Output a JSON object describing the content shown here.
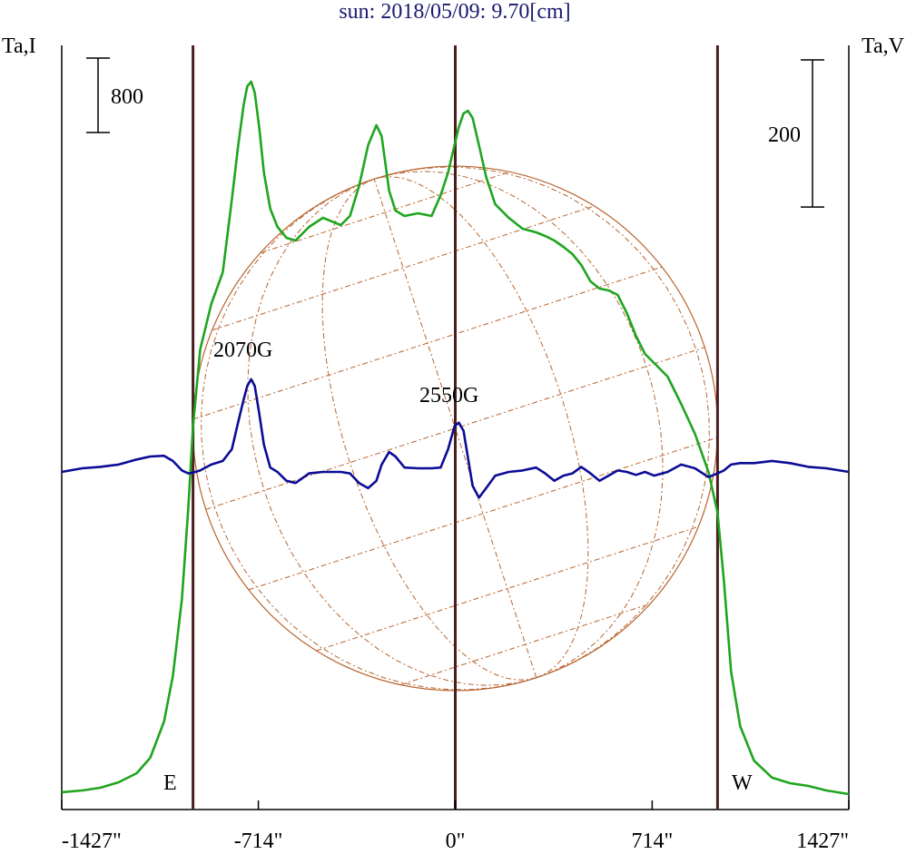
{
  "chart_data": {
    "type": "line",
    "title": "sun: 2018/05/09: 9.70[cm]",
    "y_label": "Ta,I",
    "y2_label": "Ta,V",
    "annotations": [
      "2070G",
      "2550G",
      "E",
      "W"
    ],
    "x": [
      -1427,
      -1353,
      -1287,
      -1221,
      -1155,
      -1106,
      -1056,
      -1024,
      -991,
      -968,
      -951,
      -925,
      -885,
      -843,
      -810,
      -787,
      -767,
      -754,
      -740,
      -727,
      -711,
      -694,
      -671,
      -645,
      -612,
      -579,
      -530,
      -480,
      -415,
      -382,
      -349,
      -316,
      -286,
      -267,
      -240,
      -217,
      -184,
      -135,
      -86,
      -53,
      -26,
      -3,
      13,
      30,
      46,
      63,
      86,
      112,
      145,
      194,
      244,
      293,
      326,
      359,
      392,
      425,
      457,
      490,
      523,
      556,
      589,
      622,
      655,
      688,
      721,
      770,
      819,
      869,
      918,
      951,
      974,
      1000,
      1033,
      1083,
      1149,
      1214,
      1280,
      1346,
      1427
    ],
    "series": [
      {
        "color": "#1fa51f",
        "values": [
          20,
          39,
          68,
          127,
          224,
          390,
          780,
          1268,
          2098,
          3073,
          3951,
          4780,
          5268,
          5610,
          6390,
          6976,
          7415,
          7610,
          7659,
          7541,
          7171,
          6683,
          6293,
          6098,
          5980,
          5951,
          6098,
          6195,
          6117,
          6215,
          6537,
          6976,
          7190,
          7073,
          6488,
          6273,
          6215,
          6244,
          6215,
          6439,
          6683,
          6976,
          7171,
          7317,
          7346,
          7268,
          6976,
          6634,
          6341,
          6195,
          6078,
          6039,
          6000,
          5951,
          5883,
          5805,
          5688,
          5512,
          5434,
          5415,
          5366,
          5171,
          4927,
          4732,
          4634,
          4488,
          4195,
          3873,
          3463,
          3024,
          2293,
          1317,
          732,
          361,
          176,
          117,
          88,
          39,
          0
        ]
      },
      {
        "color": "#0c0c96",
        "axis": "y2",
        "values": [
          0,
          5,
          7,
          10,
          17,
          21,
          22,
          15,
          2,
          -2,
          -1,
          2,
          10,
          15,
          31,
          68,
          99,
          117,
          126,
          117,
          80,
          37,
          6,
          0,
          -12,
          -15,
          -2,
          0,
          0,
          -2,
          -15,
          -22,
          -12,
          10,
          27,
          21,
          6,
          5,
          5,
          6,
          31,
          62,
          67,
          56,
          19,
          -19,
          -35,
          -22,
          -5,
          0,
          2,
          6,
          -2,
          -12,
          -5,
          -2,
          7,
          -2,
          -12,
          -5,
          2,
          0,
          -4,
          0,
          -5,
          0,
          10,
          5,
          -7,
          -2,
          2,
          10,
          12,
          12,
          15,
          12,
          7,
          5,
          0
        ]
      }
    ],
    "xlim": [
      -1427,
      1427
    ],
    "xticks": [
      {
        "value": -1427,
        "label": "-1427\""
      },
      {
        "value": -714,
        "label": "-714\""
      },
      {
        "value": 0,
        "label": "0\""
      },
      {
        "value": 714,
        "label": "714\""
      },
      {
        "value": 1427,
        "label": "1427\""
      }
    ],
    "ylim": [
      -166,
      8049
    ],
    "y2lim": [
      -459,
      580
    ],
    "y_scale_bar": 800,
    "y2_scale_bar": 200,
    "limb_lines": [
      -951,
      0,
      951
    ],
    "limb_color": "#4a1e1e",
    "disk_color": "#b8642e"
  }
}
